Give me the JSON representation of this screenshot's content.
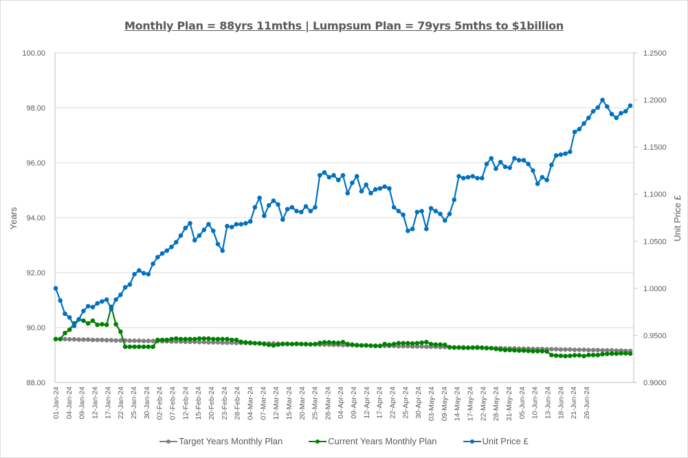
{
  "chart_data": {
    "type": "line",
    "title": "Monthly Plan = 88yrs 11mths | Lumpsum Plan = 79yrs 5mths to $1billion",
    "ylabel": "Years",
    "y2label": "Unit Price £",
    "ylim": [
      88,
      100
    ],
    "y2lim": [
      0.9,
      1.25
    ],
    "yticks": [
      "88.00",
      "90.00",
      "92.00",
      "94.00",
      "96.00",
      "98.00",
      "100.00"
    ],
    "y2ticks": [
      "0.9000",
      "0.9500",
      "1.0000",
      "1.0500",
      "1.1000",
      "1.1500",
      "1.2000",
      "1.2500"
    ],
    "xtick_labels": [
      "01-Jan-24",
      "04-Jan-24",
      "09-Jan-24",
      "12-Jan-24",
      "17-Jan-24",
      "22-Jan-24",
      "25-Jan-24",
      "30-Jan-24",
      "02-Feb-24",
      "07-Feb-24",
      "12-Feb-24",
      "15-Feb-24",
      "20-Feb-24",
      "23-Feb-24",
      "28-Feb-24",
      "04-Mar-24",
      "07-Mar-24",
      "12-Mar-24",
      "15-Mar-24",
      "20-Mar-24",
      "25-Mar-24",
      "28-Mar-24",
      "04-Apr-24",
      "09-Apr-24",
      "12-Apr-24",
      "17-Apr-24",
      "22-Apr-24",
      "25-Apr-24",
      "30-Apr-24",
      "03-May-24",
      "09-May-24",
      "14-May-24",
      "17-May-24",
      "22-May-24",
      "28-May-24",
      "31-May-24",
      "05-Jun-24",
      "10-Jun-24",
      "13-Jun-24",
      "18-Jun-24",
      "21-Jun-24",
      "26-Jun-24"
    ],
    "grid": true,
    "legend_position": "bottom",
    "series": [
      {
        "name": "Target Years Monthly Plan",
        "axis": "left",
        "color": "#808080",
        "values": [
          89.58,
          89.58,
          89.58,
          89.57,
          89.57,
          89.56,
          89.56,
          89.56,
          89.55,
          89.55,
          89.55,
          89.54,
          89.54,
          89.53,
          89.53,
          89.53,
          89.52,
          89.52,
          89.52,
          89.51,
          89.51,
          89.51,
          89.5,
          89.5,
          89.5,
          89.49,
          89.49,
          89.49,
          89.48,
          89.48,
          89.48,
          89.47,
          89.47,
          89.46,
          89.46,
          89.46,
          89.45,
          89.45,
          89.45,
          89.44,
          89.44,
          89.44,
          89.43,
          89.43,
          89.43,
          89.42,
          89.42,
          89.42,
          89.41,
          89.41,
          89.41,
          89.4,
          89.4,
          89.4,
          89.39,
          89.39,
          89.39,
          89.38,
          89.38,
          89.38,
          89.37,
          89.37,
          89.36,
          89.36,
          89.36,
          89.35,
          89.35,
          89.35,
          89.34,
          89.34,
          89.34,
          89.33,
          89.33,
          89.33,
          89.32,
          89.32,
          89.32,
          89.31,
          89.31,
          89.31,
          89.3,
          89.3,
          89.3,
          89.29,
          89.29,
          89.29,
          89.28,
          89.28,
          89.28,
          89.27,
          89.27,
          89.26,
          89.26,
          89.26,
          89.25,
          89.25,
          89.25,
          89.24,
          89.24,
          89.24,
          89.23,
          89.23,
          89.23,
          89.22,
          89.22,
          89.22,
          89.21,
          89.21,
          89.21,
          89.2,
          89.2,
          89.2,
          89.19,
          89.19,
          89.19,
          89.18,
          89.18,
          89.18,
          89.17,
          89.17,
          89.17,
          89.16,
          89.16,
          89.15,
          89.15
        ]
      },
      {
        "name": "Current Years Monthly Plan",
        "axis": "left",
        "color": "#008000",
        "values": [
          89.58,
          89.58,
          89.8,
          89.92,
          90.15,
          90.3,
          90.25,
          90.15,
          90.25,
          90.1,
          90.12,
          90.1,
          90.75,
          90.12,
          89.85,
          89.3,
          89.3,
          89.3,
          89.3,
          89.3,
          89.3,
          89.3,
          89.55,
          89.55,
          89.55,
          89.58,
          89.6,
          89.58,
          89.58,
          89.58,
          89.58,
          89.6,
          89.6,
          89.6,
          89.58,
          89.58,
          89.58,
          89.58,
          89.55,
          89.55,
          89.48,
          89.46,
          89.45,
          89.43,
          89.42,
          89.4,
          89.37,
          89.35,
          89.38,
          89.4,
          89.4,
          89.4,
          89.41,
          89.4,
          89.4,
          89.39,
          89.4,
          89.44,
          89.46,
          89.46,
          89.45,
          89.44,
          89.47,
          89.4,
          89.38,
          89.36,
          89.35,
          89.35,
          89.34,
          89.33,
          89.33,
          89.4,
          89.37,
          89.4,
          89.43,
          89.43,
          89.43,
          89.42,
          89.43,
          89.45,
          89.47,
          89.4,
          89.38,
          89.38,
          89.37,
          89.28,
          89.27,
          89.27,
          89.26,
          89.26,
          89.27,
          89.28,
          89.27,
          89.25,
          89.25,
          89.22,
          89.2,
          89.18,
          89.18,
          89.17,
          89.16,
          89.16,
          89.15,
          89.14,
          89.14,
          89.14,
          89.13,
          89.0,
          88.98,
          88.97,
          88.96,
          88.97,
          88.99,
          88.99,
          88.96,
          89.0,
          89.0,
          89.0,
          89.03,
          89.04,
          89.05,
          89.05,
          89.06,
          89.06,
          89.05
        ]
      },
      {
        "name": "Unit Price £",
        "axis": "right",
        "color": "#0070c0",
        "values": [
          1.0,
          0.987,
          0.973,
          0.969,
          0.96,
          0.967,
          0.976,
          0.981,
          0.98,
          0.984,
          0.986,
          0.988,
          0.978,
          0.988,
          0.993,
          1.001,
          1.004,
          1.015,
          1.019,
          1.016,
          1.015,
          1.026,
          1.033,
          1.037,
          1.04,
          1.044,
          1.049,
          1.056,
          1.064,
          1.069,
          1.051,
          1.056,
          1.062,
          1.068,
          1.061,
          1.047,
          1.04,
          1.066,
          1.065,
          1.068,
          1.068,
          1.069,
          1.071,
          1.086,
          1.096,
          1.077,
          1.088,
          1.093,
          1.089,
          1.073,
          1.084,
          1.086,
          1.082,
          1.081,
          1.087,
          1.082,
          1.086,
          1.12,
          1.123,
          1.118,
          1.12,
          1.115,
          1.12,
          1.101,
          1.112,
          1.119,
          1.103,
          1.11,
          1.101,
          1.105,
          1.106,
          1.108,
          1.106,
          1.086,
          1.082,
          1.078,
          1.061,
          1.063,
          1.081,
          1.082,
          1.063,
          1.085,
          1.082,
          1.079,
          1.072,
          1.079,
          1.094,
          1.119,
          1.117,
          1.118,
          1.119,
          1.117,
          1.117,
          1.132,
          1.138,
          1.127,
          1.134,
          1.129,
          1.128,
          1.138,
          1.136,
          1.136,
          1.132,
          1.125,
          1.111,
          1.118,
          1.115,
          1.131,
          1.141,
          1.142,
          1.143,
          1.145,
          1.166,
          1.169,
          1.175,
          1.181,
          1.188,
          1.192,
          1.2,
          1.193,
          1.185,
          1.181,
          1.186,
          1.188,
          1.194
        ]
      }
    ]
  }
}
